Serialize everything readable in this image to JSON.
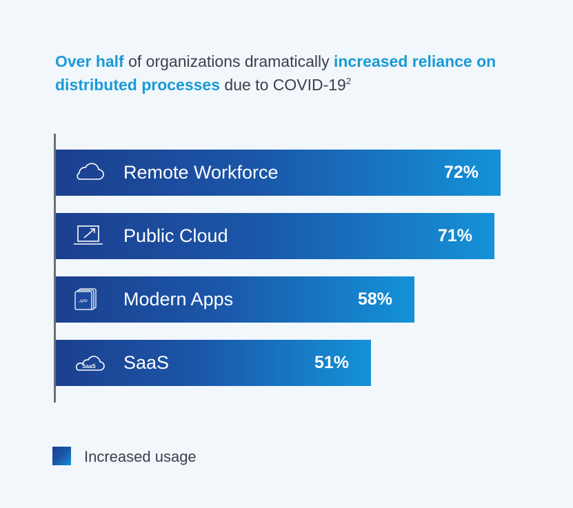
{
  "title": {
    "part1": "Over half",
    "part2": " of organizations dramatically ",
    "part3": "increased reliance on distributed processes",
    "part4": " due to COVID-19",
    "sup": "2"
  },
  "legend": {
    "label": "Increased usage"
  },
  "colors": {
    "accent": "#1a9ad6",
    "bar_start": "#1c3f8f",
    "bar_end": "#1492d8",
    "background": "#f1f7fb"
  },
  "chart_data": {
    "type": "bar",
    "orientation": "horizontal",
    "categories": [
      "Remote Workforce",
      "Public Cloud",
      "Modern Apps",
      "SaaS"
    ],
    "values": [
      72,
      71,
      58,
      51
    ],
    "value_labels": [
      "72%",
      "71%",
      "58%",
      "51%"
    ],
    "icons": [
      "cloud-icon",
      "laptop-icon",
      "app-stack-icon",
      "saas-cloud-icon"
    ],
    "series": [
      {
        "name": "Increased usage",
        "values": [
          72,
          71,
          58,
          51
        ]
      }
    ],
    "legend": "bottom-left",
    "grid": false
  }
}
